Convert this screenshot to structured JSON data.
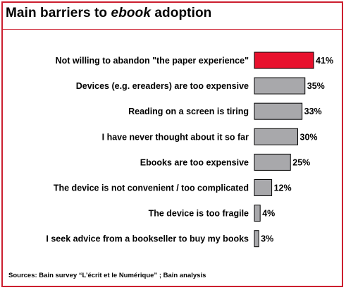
{
  "title": {
    "prefix": "Main barriers to ",
    "emphasis": "ebook",
    "suffix": " adoption"
  },
  "source": "Sources: Bain survey “L’écrit et le Numérique” ; Bain analysis",
  "colors": {
    "border": "#cc1f2f",
    "highlight_bar": "#e8112d",
    "bar": "#a8a8ab",
    "bar_outline": "#000000"
  },
  "chart_data": {
    "type": "bar",
    "orientation": "horizontal",
    "categories": [
      "Not willing to abandon \"the paper experience\"",
      "Devices (e.g. ereaders) are too expensive",
      "Reading on a screen is tiring",
      "I have never thought about it so far",
      "Ebooks are too expensive",
      "The device is not convenient / too complicated",
      "The device is too fragile",
      "I seek advice from a bookseller to buy my books"
    ],
    "values": [
      41,
      35,
      33,
      30,
      25,
      12,
      4,
      3
    ],
    "value_labels": [
      "41%",
      "35%",
      "33%",
      "30%",
      "25%",
      "12%",
      "4%",
      "3%"
    ],
    "unit": "%",
    "highlight_index": 0,
    "grid": false,
    "legend": "none"
  }
}
